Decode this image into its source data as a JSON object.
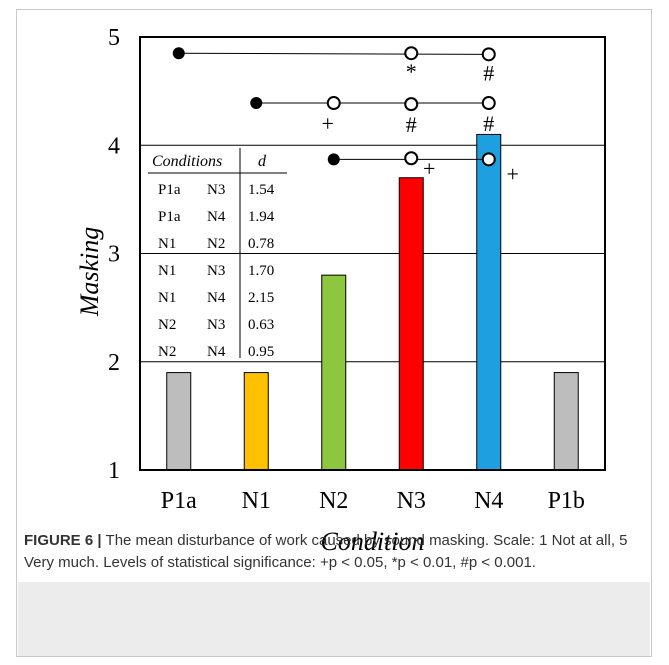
{
  "caption": {
    "label": "FIGURE 6 |",
    "text": "The mean disturbance of work caused by sound masking. Scale: 1 Not at all, 5 Very much. Levels of statistical significance: +p < 0.05, *p < 0.01, #p < 0.001."
  },
  "chart_data": {
    "type": "bar",
    "title": "",
    "xlabel": "Condition",
    "ylabel": "Masking",
    "ylim": [
      1,
      5
    ],
    "yticks": [
      1,
      2,
      3,
      4,
      5
    ],
    "grid": true,
    "categories": [
      "P1a",
      "N1",
      "N2",
      "N3",
      "N4",
      "P1b"
    ],
    "values": [
      1.9,
      1.9,
      2.8,
      3.7,
      4.1,
      1.9
    ],
    "colors": [
      "#bdbdbd",
      "#ffc000",
      "#8dc63f",
      "#ff0000",
      "#1e9fe0",
      "#bdbdbd"
    ],
    "significance_lines": [
      {
        "from": "P1a",
        "y": 4.85,
        "targets": [
          {
            "to": "N3",
            "y": 4.85,
            "symbol": "*"
          },
          {
            "to": "N4",
            "y": 4.84,
            "symbol": "#"
          }
        ]
      },
      {
        "from": "N1",
        "y": 4.39,
        "targets": [
          {
            "to": "N2",
            "y": 4.39,
            "symbol": "+"
          },
          {
            "to": "N3",
            "y": 4.38,
            "symbol": "#"
          },
          {
            "to": "N4",
            "y": 4.39,
            "symbol": "#"
          }
        ]
      },
      {
        "from": "N2",
        "y": 3.87,
        "targets": [
          {
            "to": "N3",
            "y": 3.88,
            "symbol": "+"
          },
          {
            "to": "N4",
            "y": 3.87,
            "symbol": "+"
          }
        ]
      }
    ],
    "effect_table": {
      "headers": [
        "Conditions",
        "d"
      ],
      "rows": [
        [
          "P1a",
          "N3",
          "1.54"
        ],
        [
          "P1a",
          "N4",
          "1.94"
        ],
        [
          "N1",
          "N2",
          "0.78"
        ],
        [
          "N1",
          "N3",
          "1.70"
        ],
        [
          "N1",
          "N4",
          "2.15"
        ],
        [
          "N2",
          "N3",
          "0.63"
        ],
        [
          "N2",
          "N4",
          "0.95"
        ]
      ]
    }
  }
}
